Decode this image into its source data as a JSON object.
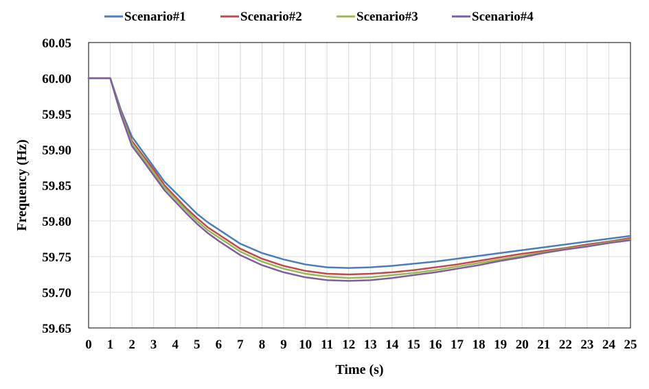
{
  "chart_data": {
    "type": "line",
    "title": "",
    "xlabel": "Time (s)",
    "ylabel": "Frequency (Hz)",
    "xlim": [
      0,
      25
    ],
    "ylim": [
      59.65,
      60.05
    ],
    "x_ticks": [
      "0",
      "1",
      "2",
      "3",
      "4",
      "5",
      "6",
      "7",
      "8",
      "9",
      "10",
      "11",
      "12",
      "13",
      "14",
      "15",
      "16",
      "17",
      "18",
      "19",
      "20",
      "21",
      "22",
      "23",
      "24",
      "25"
    ],
    "y_ticks": [
      "60.05",
      "60.00",
      "59.95",
      "59.90",
      "59.85",
      "59.80",
      "59.75",
      "59.70",
      "59.65"
    ],
    "grid": true,
    "legend_position": "top",
    "x": [
      0,
      1,
      1.5,
      2,
      2.5,
      3,
      3.5,
      4,
      4.5,
      5,
      5.5,
      6,
      7,
      8,
      9,
      10,
      11,
      12,
      13,
      14,
      15,
      16,
      17,
      18,
      19,
      20,
      21,
      22,
      23,
      24,
      25
    ],
    "series": [
      {
        "name": "Scenario#1",
        "color": "#4a7ebb",
        "values": [
          60.0,
          60.0,
          59.955,
          59.918,
          59.897,
          59.876,
          59.855,
          59.84,
          59.825,
          59.81,
          59.798,
          59.788,
          59.768,
          59.755,
          59.746,
          59.739,
          59.735,
          59.734,
          59.735,
          59.737,
          59.74,
          59.743,
          59.747,
          59.751,
          59.755,
          59.759,
          59.763,
          59.767,
          59.771,
          59.775,
          59.779
        ]
      },
      {
        "name": "Scenario#2",
        "color": "#be4b48",
        "values": [
          60.0,
          60.0,
          59.952,
          59.912,
          59.892,
          59.872,
          59.85,
          59.834,
          59.818,
          59.804,
          59.791,
          59.781,
          59.761,
          59.747,
          59.737,
          59.73,
          59.726,
          59.725,
          59.726,
          59.728,
          59.731,
          59.735,
          59.739,
          59.744,
          59.749,
          59.754,
          59.758,
          59.762,
          59.767,
          59.771,
          59.776
        ]
      },
      {
        "name": "Scenario#3",
        "color": "#98b954",
        "values": [
          60.0,
          60.0,
          59.95,
          59.909,
          59.889,
          59.868,
          59.847,
          59.831,
          59.815,
          59.8,
          59.787,
          59.777,
          59.757,
          59.743,
          59.733,
          59.726,
          59.722,
          59.72,
          59.721,
          59.724,
          59.727,
          59.731,
          59.736,
          59.741,
          59.746,
          59.751,
          59.756,
          59.761,
          59.765,
          59.77,
          59.774
        ]
      },
      {
        "name": "Scenario#4",
        "color": "#7d5fa0",
        "values": [
          60.0,
          60.0,
          59.948,
          59.905,
          59.885,
          59.864,
          59.843,
          59.827,
          59.811,
          59.796,
          59.783,
          59.772,
          59.752,
          59.738,
          59.728,
          59.721,
          59.717,
          59.716,
          59.717,
          59.72,
          59.724,
          59.728,
          59.733,
          59.738,
          59.744,
          59.749,
          59.755,
          59.76,
          59.764,
          59.769,
          59.773
        ]
      }
    ]
  }
}
